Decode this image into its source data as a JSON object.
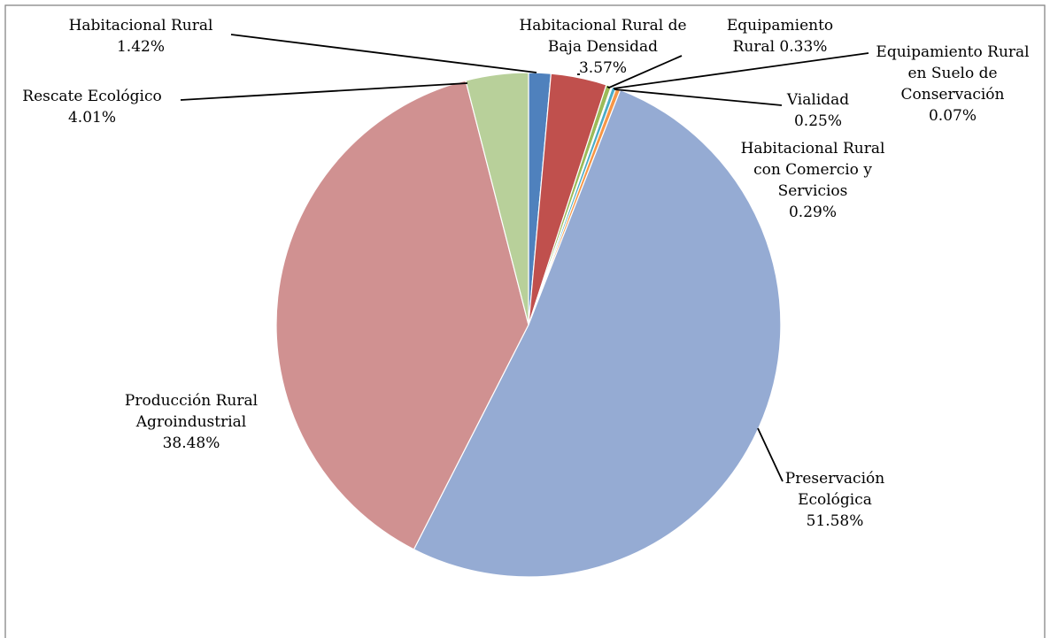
{
  "chart_data": {
    "type": "pie",
    "title": "",
    "legend": "none",
    "slices": [
      {
        "name": "Habitacional Rural",
        "value": 1.42,
        "label": "1.42%",
        "color": "#4f81bd",
        "lines": [
          "Habitacional Rural",
          "1.42%"
        ]
      },
      {
        "name": "Habitacional Rural de Baja Densidad",
        "value": 3.57,
        "label": "3.57%",
        "color": "#c0504d",
        "lines": [
          "Habitacional Rural de",
          "Baja Densidad",
          "3.57%"
        ]
      },
      {
        "name": "Equipamiento Rural",
        "value": 0.33,
        "label": "0.33%",
        "color": "#9bbb59",
        "lines": [
          "Equipamiento",
          "Rural  0.33%"
        ]
      },
      {
        "name": "Equipamiento Rural en Suelo de Conservación",
        "value": 0.07,
        "label": "0.07%",
        "color": "#8064a2",
        "lines": [
          "Equipamiento Rural",
          "en Suelo de",
          "Conservación",
          "0.07%"
        ]
      },
      {
        "name": "Vialidad",
        "value": 0.25,
        "label": "0.25%",
        "color": "#4bacc6",
        "lines": [
          "Vialidad",
          "0.25%"
        ]
      },
      {
        "name": "Habitacional Rural con Comercio y Servicios",
        "value": 0.29,
        "label": "0.29%",
        "color": "#f79646",
        "lines": [
          "Habitacional Rural",
          "con Comercio y",
          "Servicios",
          "0.29%"
        ]
      },
      {
        "name": "Preservación Ecológica",
        "value": 51.58,
        "label": "51.58%",
        "color": "#95abd3",
        "lines": [
          "Preservación",
          "Ecológica",
          "51.58%"
        ]
      },
      {
        "name": "Producción Rural Agroindustrial",
        "value": 38.48,
        "label": "38.48%",
        "color": "#d09191",
        "lines": [
          "Producción Rural",
          "Agroindustrial",
          "38.48%"
        ]
      },
      {
        "name": "Rescate Ecológico",
        "value": 4.01,
        "label": "4.01%",
        "color": "#b8d09a",
        "lines": [
          "Rescate Ecológico",
          "4.01%"
        ]
      }
    ]
  }
}
